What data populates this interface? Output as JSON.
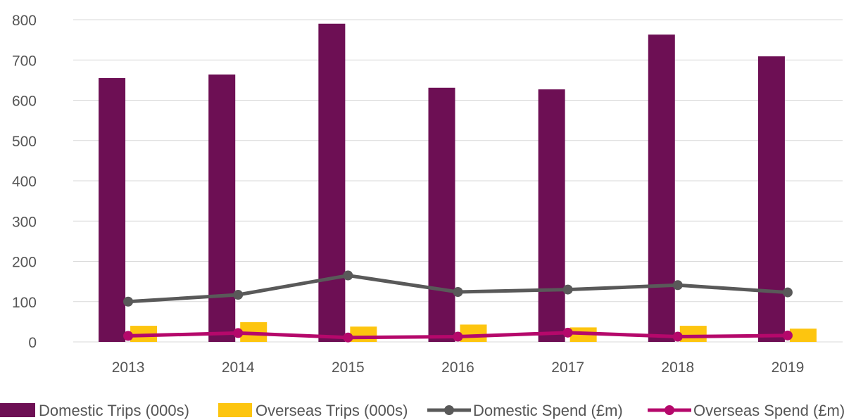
{
  "chart_data": {
    "type": "bar",
    "categories": [
      "2013",
      "2014",
      "2015",
      "2016",
      "2017",
      "2018",
      "2019"
    ],
    "ylim": [
      0,
      800
    ],
    "yticks": [
      0,
      100,
      200,
      300,
      400,
      500,
      600,
      700,
      800
    ],
    "grid": true,
    "legend_position": "bottom",
    "series": [
      {
        "name": "Domestic Trips (000s)",
        "kind": "bar",
        "color": "#6d0f54",
        "values": [
          655,
          664,
          790,
          631,
          627,
          763,
          709
        ]
      },
      {
        "name": "Overseas Trips (000s)",
        "kind": "bar",
        "color": "#fdc50f",
        "values": [
          40,
          49,
          38,
          43,
          36,
          40,
          33
        ]
      },
      {
        "name": "Domestic Spend (£m)",
        "kind": "line",
        "color": "#595959",
        "values": [
          100,
          117,
          165,
          124,
          130,
          141,
          123
        ]
      },
      {
        "name": "Overseas Spend (£m)",
        "kind": "line",
        "color": "#b5086b",
        "values": [
          15,
          22,
          11,
          13,
          23,
          13,
          16
        ]
      }
    ]
  }
}
